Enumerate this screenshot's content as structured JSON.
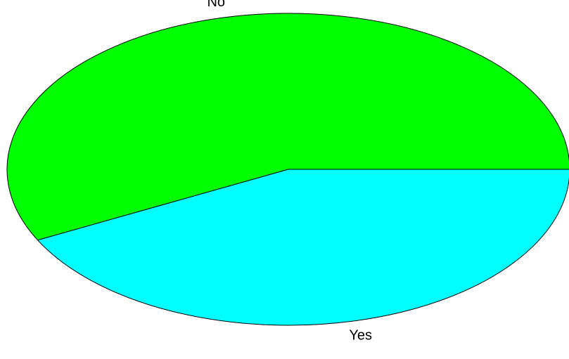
{
  "chart_data": {
    "type": "pie",
    "title": "",
    "slices": [
      {
        "label": "No",
        "value": 57.5,
        "color": "#00ff00"
      },
      {
        "label": "Yes",
        "value": 42.5,
        "color": "#00ffff"
      }
    ],
    "start_angle_deg": 0,
    "direction": "counterclockwise",
    "legend": "none"
  }
}
